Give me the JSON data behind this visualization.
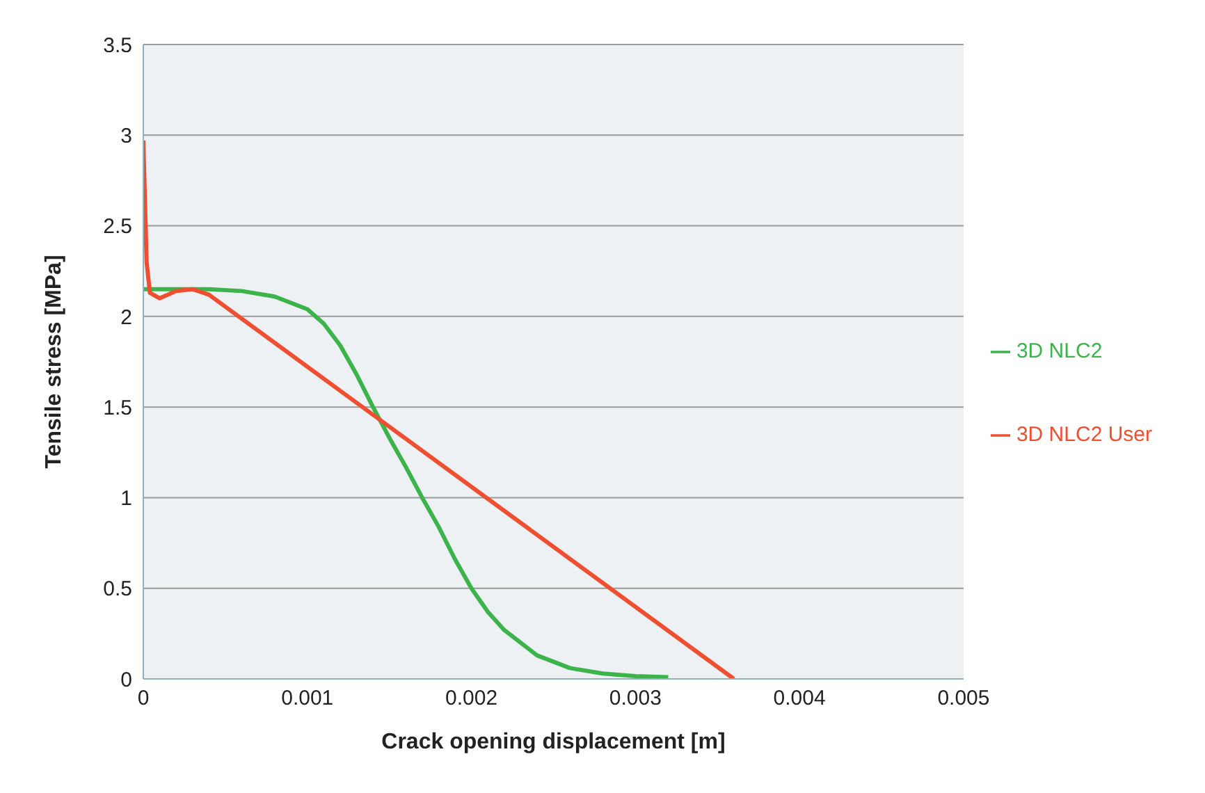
{
  "chart_data": {
    "type": "line",
    "xlabel": "Crack opening  displacement  [m]",
    "ylabel": "Tensile stress [MPa]",
    "xlim": [
      0,
      0.005
    ],
    "xticks": [
      0,
      0.001,
      0.002,
      0.003,
      0.004,
      0.005
    ],
    "ylim": [
      0,
      3.5
    ],
    "yticks": [
      0,
      0.5,
      1,
      1.5,
      2,
      2.5,
      3,
      3.5
    ],
    "grid": "y",
    "legend": "right",
    "marker": "none",
    "line_style": "solid",
    "series": [
      {
        "name": "3D NLC2",
        "color": "#3cb44b",
        "x": [
          0,
          0.0002,
          0.0004,
          0.0006,
          0.0008,
          0.001,
          0.0011,
          0.0012,
          0.0013,
          0.0014,
          0.0015,
          0.0016,
          0.0017,
          0.0018,
          0.0019,
          0.002,
          0.0021,
          0.0022,
          0.0024,
          0.0026,
          0.0028,
          0.003,
          0.0032
        ],
        "values": [
          2.15,
          2.15,
          2.15,
          2.14,
          2.11,
          2.04,
          1.96,
          1.84,
          1.68,
          1.5,
          1.33,
          1.17,
          1.0,
          0.84,
          0.66,
          0.5,
          0.37,
          0.27,
          0.13,
          0.06,
          0.03,
          0.015,
          0.01
        ]
      },
      {
        "name": "3D NLC2 User",
        "color": "#f04e30",
        "x": [
          0,
          2e-05,
          4e-05,
          0.0001,
          0.0002,
          0.0003,
          0.0004,
          0.0036
        ],
        "values": [
          2.97,
          2.3,
          2.13,
          2.1,
          2.14,
          2.15,
          2.12,
          0
        ]
      }
    ]
  }
}
